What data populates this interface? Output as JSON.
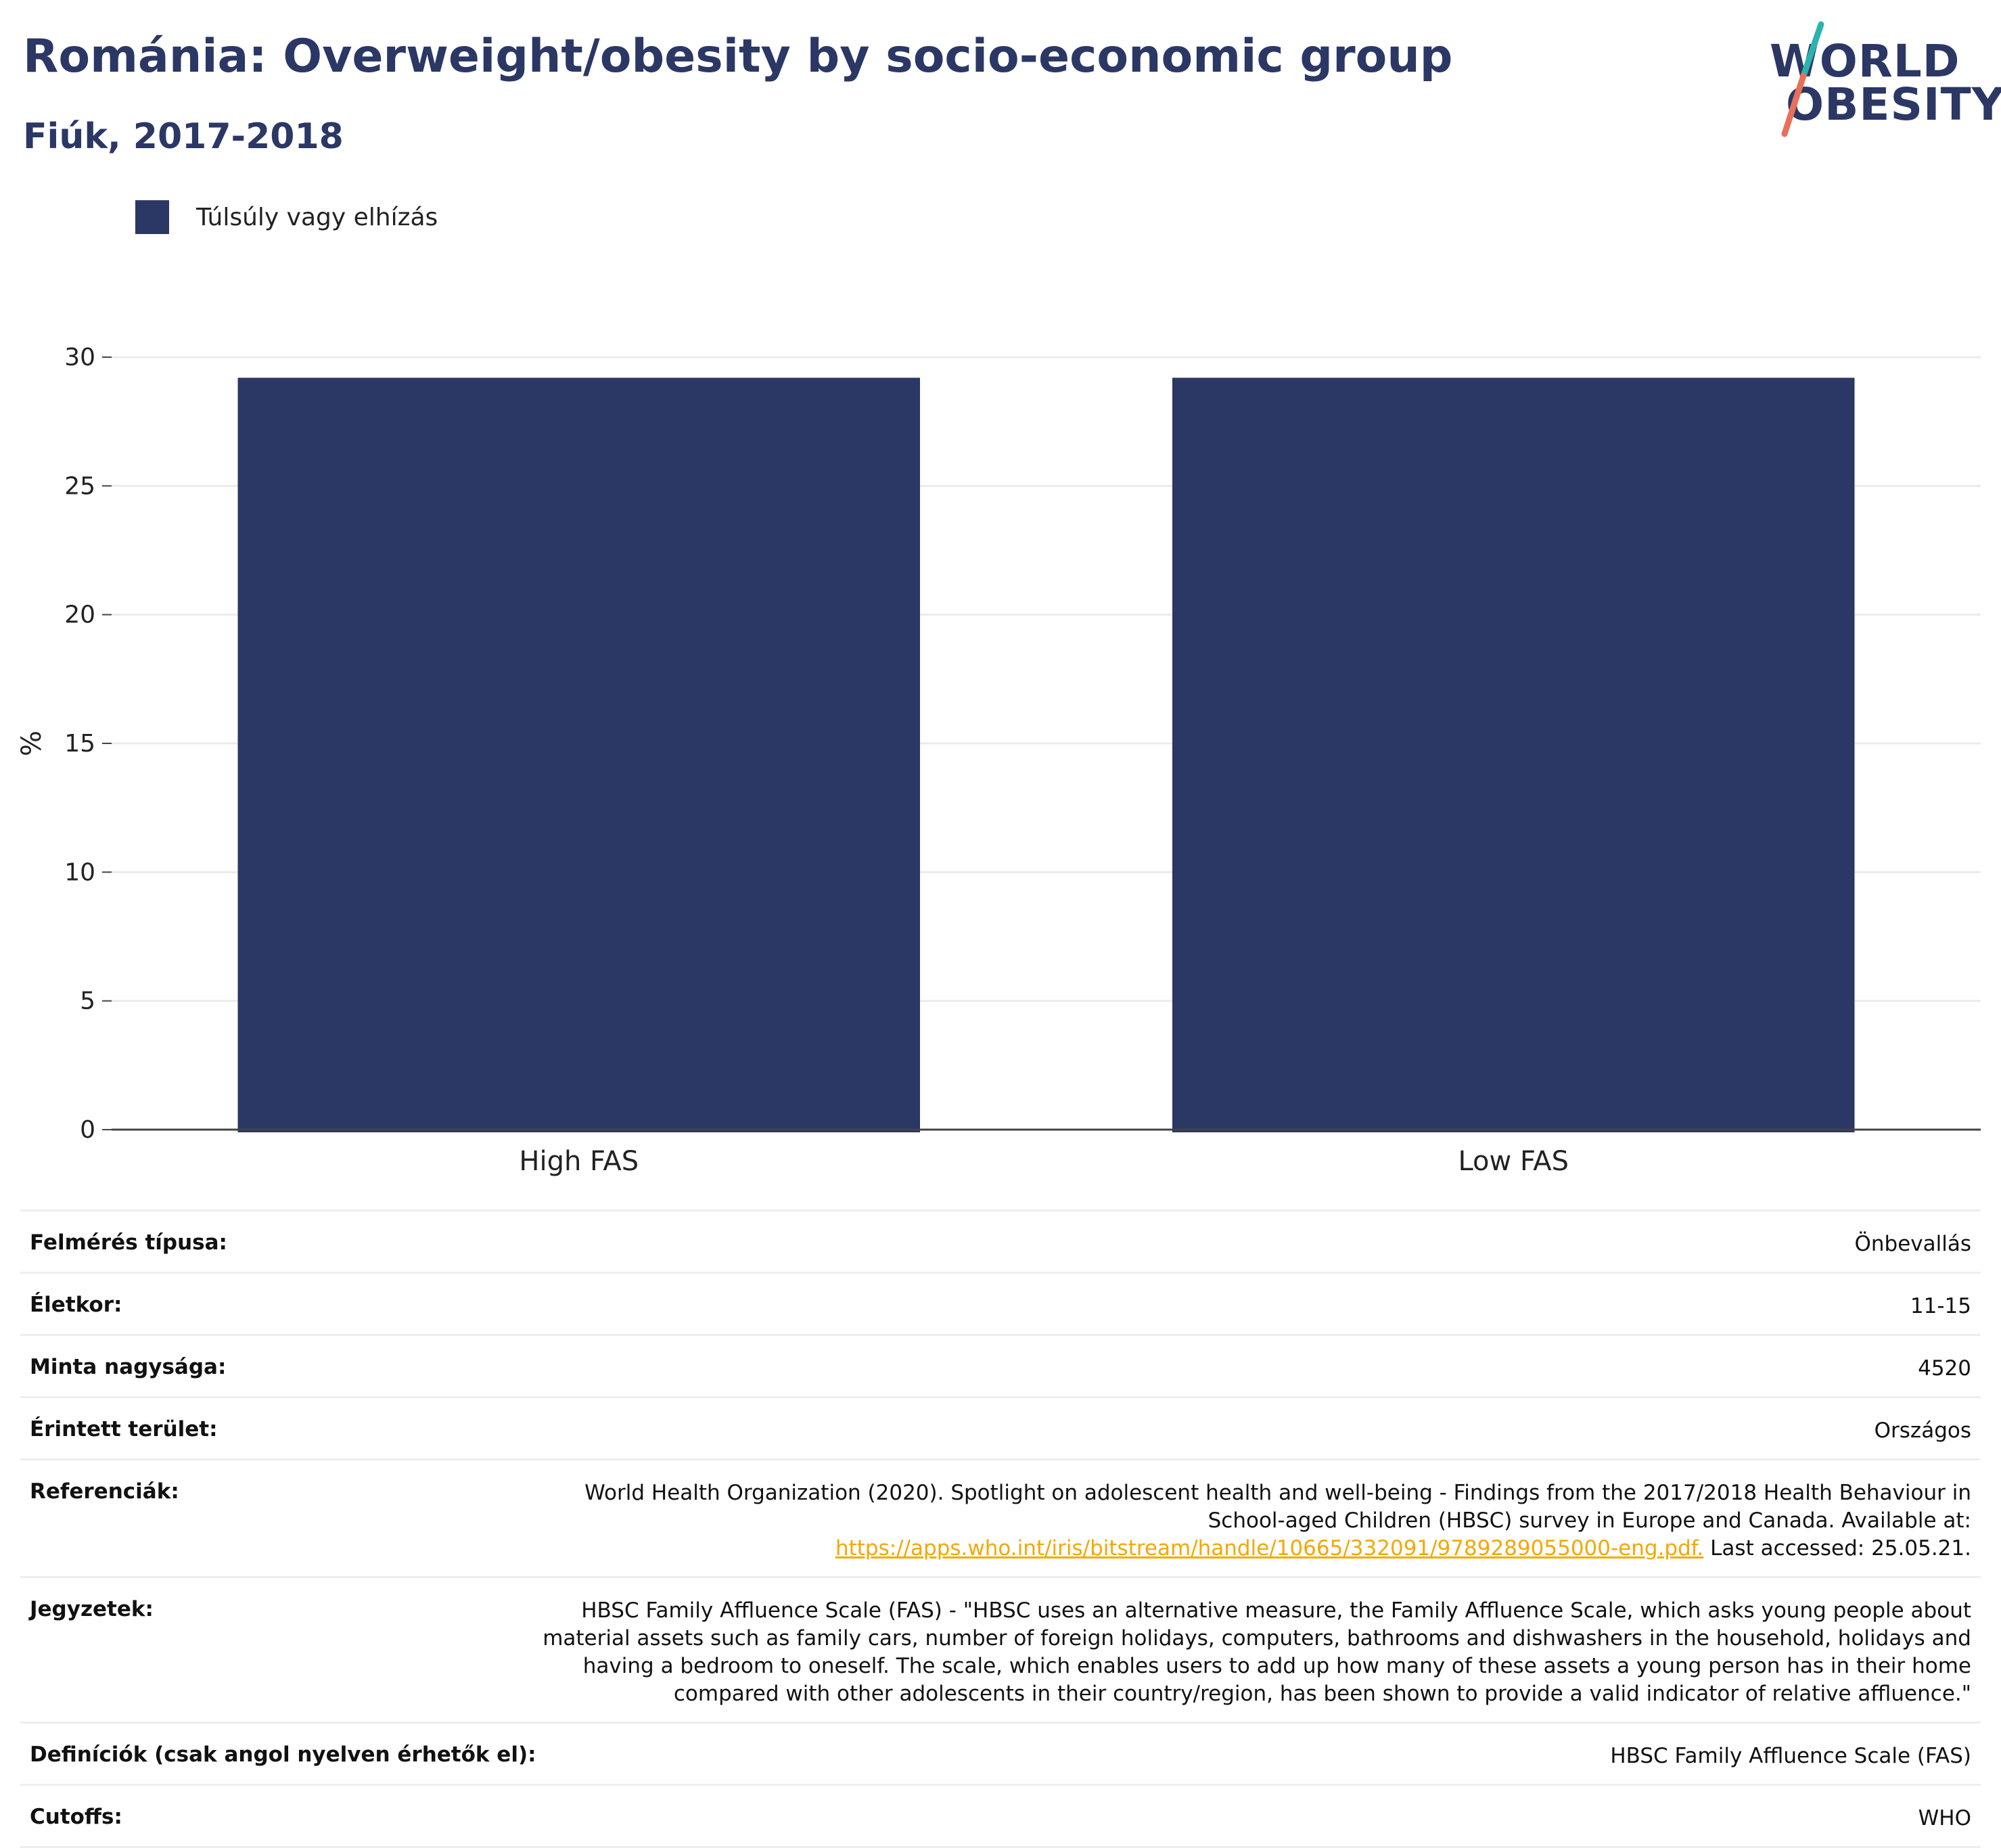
{
  "header": {
    "title": "Románia: Overweight/obesity by socio-economic group",
    "subtitle": "Fiúk, 2017-2018"
  },
  "logo": {
    "line1": "WORLD",
    "line2": "OBESITY",
    "colors": {
      "text": "#2b3764",
      "slash_top": "#2bb3b1",
      "slash_bottom": "#e8705a"
    }
  },
  "legend": {
    "items": [
      {
        "label": "Túlsúly vagy elhízás",
        "color": "#2b3764"
      }
    ],
    "placement": "top-left"
  },
  "chart_data": {
    "type": "bar",
    "categories": [
      "High FAS",
      "Low FAS"
    ],
    "series": [
      {
        "name": "Túlsúly vagy elhízás",
        "values": [
          29.2,
          29.2
        ],
        "color": "#2b3764"
      }
    ],
    "xlabel": "",
    "ylabel": "%",
    "ylim": [
      0,
      30
    ],
    "yticks": [
      0,
      5,
      10,
      15,
      20,
      25,
      30
    ],
    "grid": true
  },
  "info": {
    "rows": [
      {
        "label": "Felmérés típusa:",
        "value": "Önbevallás"
      },
      {
        "label": "Életkor:",
        "value": "11-15"
      },
      {
        "label": "Minta nagysága:",
        "value": "4520"
      },
      {
        "label": "Érintett terület:",
        "value": "Országos"
      },
      {
        "label": "Referenciák:",
        "value_lines": [
          "World Health Organization (2020). Spotlight on adolescent health and well-being - Findings from the 2017/2018 Health Behaviour in",
          "School-aged Children (HBSC) survey in Europe and Canada. Available at:"
        ],
        "link": "https://apps.who.int/iris/bitstream/handle/10665/332091/9789289055000-eng.pdf.",
        "suffix": " Last accessed: 25.05.21."
      },
      {
        "label": "Jegyzetek:",
        "value_lines": [
          "HBSC Family Affluence Scale (FAS) - \"HBSC uses an alternative measure, the Family Affluence Scale, which asks young people about",
          "material assets such as family cars, number of foreign holidays, computers, bathrooms and dishwashers in the household, holidays and",
          "having a bedroom to oneself. The scale, which enables users to add up how many of these assets a young person has in their home",
          "compared with other adolescents in their country/region, has been shown to provide a valid indicator of relative affluence.\""
        ]
      },
      {
        "label": "Definíciók (csak angol nyelven érhetők el):",
        "value": "HBSC Family Affluence Scale (FAS)"
      },
      {
        "label": "Cutoffs:",
        "value": "WHO"
      }
    ]
  }
}
